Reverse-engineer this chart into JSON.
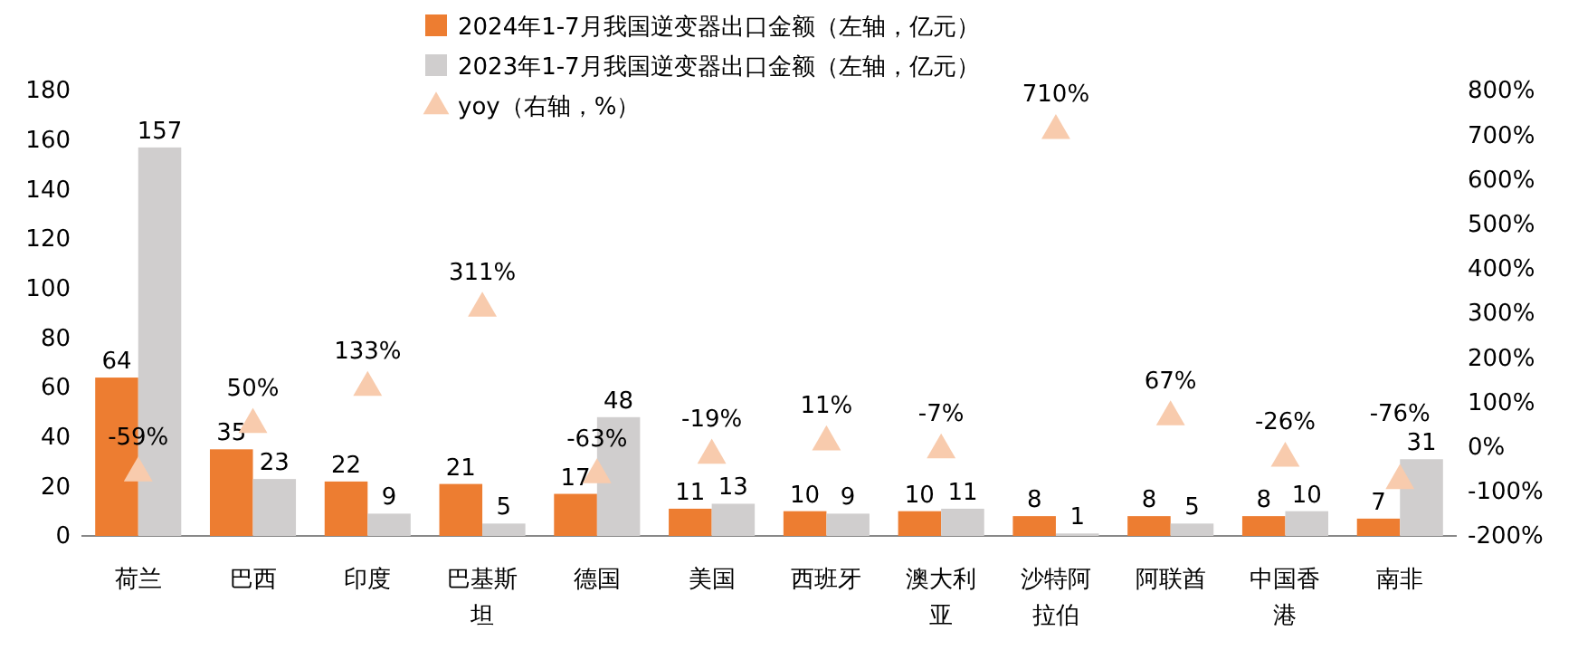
{
  "chart_data": {
    "type": "bar",
    "categories": [
      "荷兰",
      "巴西",
      "印度",
      "巴基斯坦",
      "德国",
      "美国",
      "西班牙",
      "澳大利亚",
      "沙特阿拉伯",
      "阿联酋",
      "中国香港",
      "南非"
    ],
    "series": [
      {
        "name": "2024年1-7月我国逆变器出口金额（左轴，亿元）",
        "color": "#ed7d31",
        "values": [
          64,
          35,
          22,
          21,
          17,
          11,
          10,
          10,
          8,
          8,
          8,
          7
        ]
      },
      {
        "name": "2023年1-7月我国逆变器出口金额（左轴，亿元）",
        "color": "#d0cece",
        "values": [
          157,
          23,
          9,
          5,
          48,
          13,
          9,
          11,
          1,
          5,
          10,
          31
        ]
      },
      {
        "name": "yoy（右轴，%）",
        "type": "scatter",
        "axis": "y2",
        "marker": "triangle",
        "color": "#f8cbad",
        "values": [
          -59,
          50,
          133,
          311,
          -63,
          -19,
          11,
          -7,
          710,
          67,
          -26,
          -76
        ],
        "value_labels": [
          "-59%",
          "50%",
          "133%",
          "311%",
          "-63%",
          "-19%",
          "11%",
          "-7%",
          "710%",
          "67%",
          "-26%",
          "-76%"
        ]
      }
    ],
    "ylim": [
      0,
      180
    ],
    "yticks": [
      0,
      20,
      40,
      60,
      80,
      100,
      120,
      140,
      160,
      180
    ],
    "y2lim": [
      -200,
      800
    ],
    "y2ticks": [
      {
        "value": -200,
        "label": "-200%"
      },
      {
        "value": -100,
        "label": "-100%"
      },
      {
        "value": 0,
        "label": "0%"
      },
      {
        "value": 100,
        "label": "100%"
      },
      {
        "value": 200,
        "label": "200%"
      },
      {
        "value": 300,
        "label": "300%"
      },
      {
        "value": 400,
        "label": "400%"
      },
      {
        "value": 500,
        "label": "500%"
      },
      {
        "value": 600,
        "label": "600%"
      },
      {
        "value": 700,
        "label": "700%"
      },
      {
        "value": 800,
        "label": "800%"
      }
    ],
    "data_labels": true,
    "legend": "top",
    "grid": false
  }
}
